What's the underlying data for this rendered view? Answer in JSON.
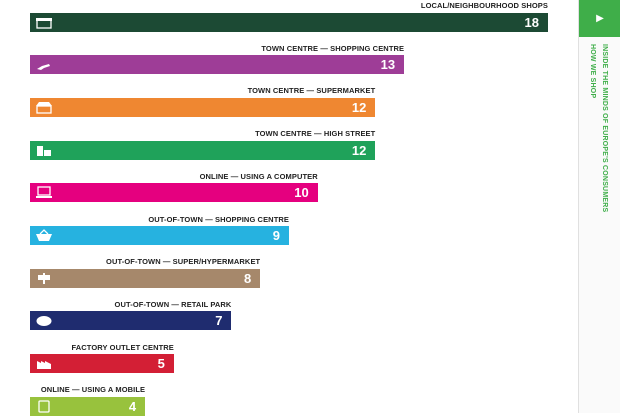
{
  "side_tab": {
    "arrow": "▶",
    "section": "HOW WE SHOP",
    "title": "INSIDE THE MINDS OF EUROPE'S CONSUMERS",
    "accent": "#3fae49"
  },
  "chart_data": {
    "type": "bar",
    "orientation": "horizontal",
    "title": "",
    "xlabel": "",
    "ylabel": "",
    "xlim": [
      0,
      18
    ],
    "grid": false,
    "categories": [
      "LOCAL/NEIGHBOURHOOD SHOPS",
      "TOWN CENTRE — SHOPPING CENTRE",
      "TOWN CENTRE — SUPERMARKET",
      "TOWN CENTRE — HIGH STREET",
      "ONLINE — USING A COMPUTER",
      "OUT-OF-TOWN — SHOPPING CENTRE",
      "OUT-OF-TOWN — SUPER/HYPERMARKET",
      "OUT-OF-TOWN — RETAIL PARK",
      "FACTORY OUTLET CENTRE",
      "ONLINE — USING A MOBILE"
    ],
    "values": [
      18,
      13,
      12,
      12,
      10,
      9,
      8,
      7,
      5,
      4
    ],
    "value_labels": [
      "18",
      "13",
      "12",
      "12",
      "10",
      "9",
      "8",
      "7",
      "5",
      "4"
    ],
    "colors": [
      "#1c4a34",
      "#9e3d97",
      "#ef8731",
      "#1fa25a",
      "#e5007f",
      "#26b2e0",
      "#a6886b",
      "#1f2c6f",
      "#d31f35",
      "#98c23d"
    ],
    "icons": [
      "shop-icon",
      "hand-icon",
      "supermarket-icon",
      "high-street-icon",
      "computer-icon",
      "basket-icon",
      "signpost-icon",
      "sale-tag-icon",
      "factory-outlet-icon",
      "mobile-icon"
    ]
  }
}
